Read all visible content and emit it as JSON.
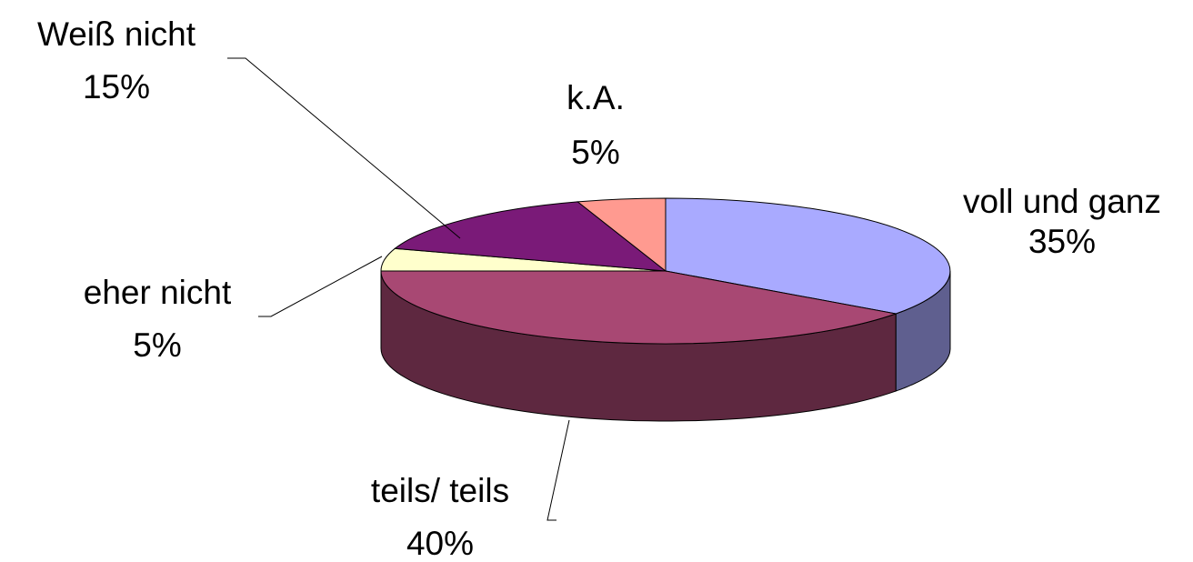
{
  "chart_data": {
    "type": "pie",
    "title": "",
    "labels": [
      "voll und ganz",
      "teils/ teils",
      "eher nicht",
      "Weiß nicht",
      "k.A."
    ],
    "values": [
      35,
      40,
      5,
      15,
      5
    ],
    "value_labels": [
      "35%",
      "40%",
      "5%",
      "15%",
      "5%"
    ],
    "colors": [
      "#a9aaff",
      "#a84873",
      "#ffffcc",
      "#7a1a78",
      "#ff9a90"
    ],
    "three_d": true,
    "legend": "none"
  }
}
